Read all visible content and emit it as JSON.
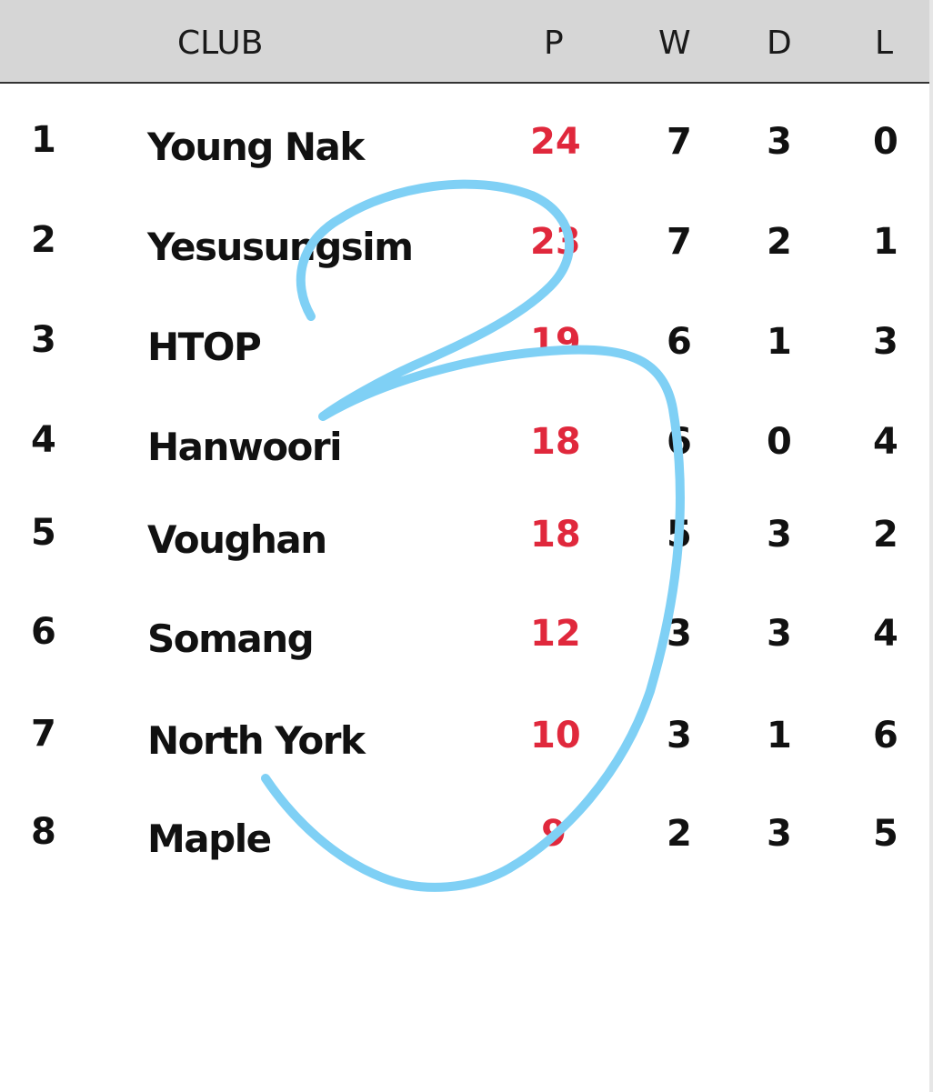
{
  "header": {
    "club": "CLUB",
    "p": "P",
    "w": "W",
    "d": "D",
    "l": "L"
  },
  "rows": [
    {
      "rank": "1",
      "club": "Young Nak",
      "p": "24",
      "w": "7",
      "d": "3",
      "l": "0"
    },
    {
      "rank": "2",
      "club": "Yesusungsim",
      "p": "23",
      "w": "7",
      "d": "2",
      "l": "1"
    },
    {
      "rank": "3",
      "club": "HTOP",
      "p": "19",
      "w": "6",
      "d": "1",
      "l": "3"
    },
    {
      "rank": "4",
      "club": "Hanwoori",
      "p": "18",
      "w": "6",
      "d": "0",
      "l": "4"
    },
    {
      "rank": "5",
      "club": "Voughan",
      "p": "18",
      "w": "5",
      "d": "3",
      "l": "2"
    },
    {
      "rank": "6",
      "club": "Somang",
      "p": "12",
      "w": "3",
      "d": "3",
      "l": "4"
    },
    {
      "rank": "7",
      "club": "North York",
      "p": "10",
      "w": "3",
      "d": "1",
      "l": "6"
    },
    {
      "rank": "8",
      "club": "Maple",
      "p": "9",
      "w": "2",
      "d": "3",
      "l": "5"
    }
  ],
  "colors": {
    "header_bg": "#d6d6d6",
    "points": "#e0283c",
    "scribble": "#7fd0f5"
  },
  "annotation": {
    "icon": "handwritten-digit-3-scribble"
  }
}
